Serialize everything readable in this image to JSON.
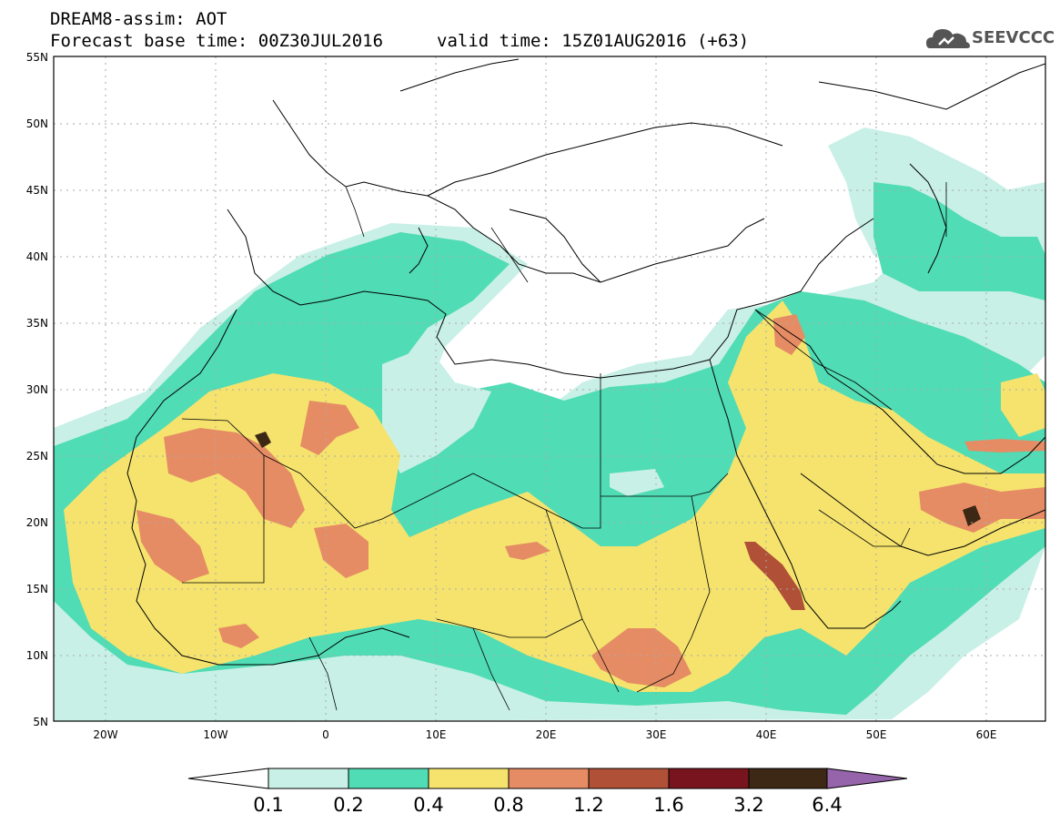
{
  "header": {
    "title": "DREAM8-assim: AOT",
    "base_time": "Forecast base time: 00Z30JUL2016",
    "valid_time": "valid time: 15Z01AUG2016 (+63)",
    "logo_text": "SEEVCCC"
  },
  "axes": {
    "lat_labels": [
      "55N",
      "50N",
      "45N",
      "40N",
      "35N",
      "30N",
      "25N",
      "20N",
      "15N",
      "10N",
      "5N"
    ],
    "lon_labels": [
      "20W",
      "10W",
      "0",
      "10E",
      "20E",
      "30E",
      "40E",
      "50E",
      "60E"
    ]
  },
  "colorbar": {
    "labels": [
      "0.1",
      "0.2",
      "0.4",
      "0.8",
      "1.2",
      "1.6",
      "3.2",
      "6.4"
    ],
    "colors": [
      "#ffffff",
      "#c8f0e6",
      "#50dcb4",
      "#f5e36e",
      "#e68c64",
      "#af5037",
      "#78141e",
      "#3c2814",
      "#9664aa"
    ]
  },
  "field_colors": {
    "very_light": "#c8f0e6",
    "light": "#50dcb4",
    "medium": "#f5e36e",
    "high": "#e68c64",
    "very_high": "#af5037",
    "extreme": "#3c2814"
  }
}
